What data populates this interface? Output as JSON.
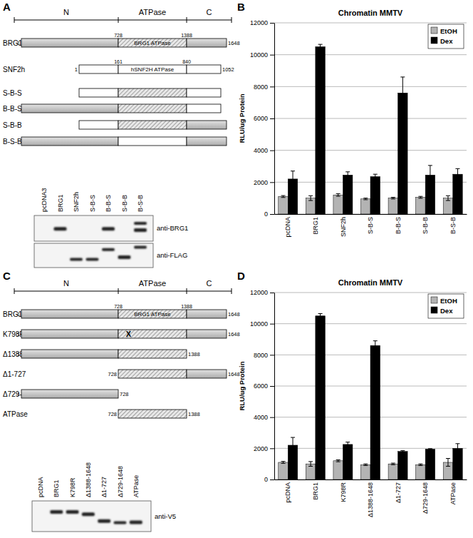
{
  "chart_data": [
    {
      "type": "bar",
      "title": "Chromatin MMTV",
      "y_label": "RLU/ug Protein",
      "categories": [
        "pcDNA",
        "BRG1",
        "SNF2h",
        "S-B-S",
        "B-B-S",
        "S-B-B",
        "B-S-B"
      ],
      "series": [
        {
          "name": "EtOH",
          "color": "#b3b3b3",
          "values": [
            1100,
            1000,
            1200,
            950,
            1000,
            1050,
            1000
          ],
          "errors": [
            60,
            150,
            80,
            50,
            50,
            60,
            150
          ]
        },
        {
          "name": "Dex",
          "color": "#000000",
          "values": [
            2200,
            10500,
            2450,
            2350,
            7600,
            2450,
            2500
          ],
          "errors": [
            500,
            150,
            200,
            150,
            1000,
            600,
            350
          ]
        }
      ],
      "ylim": [
        0,
        12000
      ],
      "yticks": [
        0,
        2000,
        4000,
        6000,
        8000,
        10000,
        12000
      ],
      "grid": true,
      "legend": "top-right"
    },
    {
      "type": "bar",
      "title": "Chromatin MMTV",
      "y_label": "RLU/ug Protein",
      "categories": [
        "pcDNA",
        "BRG1",
        "K798R",
        "Δ1388-1648",
        "Δ1-727",
        "Δ729-1648",
        "ATPase"
      ],
      "series": [
        {
          "name": "EtOH",
          "color": "#b3b3b3",
          "values": [
            1100,
            1000,
            1200,
            950,
            1000,
            950,
            1100
          ],
          "errors": [
            60,
            150,
            60,
            50,
            50,
            50,
            250
          ]
        },
        {
          "name": "Dex",
          "color": "#000000",
          "values": [
            2200,
            10500,
            2250,
            8600,
            1800,
            1950,
            2000
          ],
          "errors": [
            500,
            150,
            150,
            300,
            50,
            30,
            300
          ]
        }
      ],
      "ylim": [
        0,
        12000
      ],
      "yticks": [
        0,
        2000,
        4000,
        6000,
        8000,
        10000,
        12000
      ],
      "grid": true,
      "legend": "top-right"
    }
  ],
  "figure": {
    "panel_labels": [
      "A",
      "B",
      "C",
      "D"
    ],
    "diagrams": [
      {
        "header": [
          "N",
          "ATPase",
          "C"
        ],
        "rows": [
          {
            "name": "BRG1",
            "start": 1,
            "end": 1648,
            "ticks": [
              728,
              1388
            ],
            "domain": "BRG1 ATPase"
          },
          {
            "name": "SNF2h",
            "start": 1,
            "end": 1052,
            "ticks": [
              161,
              840
            ],
            "domain": "hSNF2H ATPase"
          },
          {
            "name": "S-B-S"
          },
          {
            "name": "B-B-S"
          },
          {
            "name": "S-B-B"
          },
          {
            "name": "B-S-B"
          }
        ]
      },
      {
        "header": [
          "N",
          "ATPase",
          "C"
        ],
        "rows": [
          {
            "name": "BRG1",
            "start": 1,
            "end": 1648,
            "ticks": [
              728,
              1388
            ],
            "domain": "BRG1 ATPase"
          },
          {
            "name": "K798R",
            "start": 1,
            "end": 1648,
            "mutation": "X"
          },
          {
            "name": "Δ1388-1648",
            "start": 1,
            "end": 1388
          },
          {
            "name": "Δ1-727",
            "start": 728,
            "end": 1648
          },
          {
            "name": "Δ729-1648",
            "start": 1,
            "end": 728
          },
          {
            "name": "ATPase",
            "start": 728,
            "end": 1388
          }
        ]
      }
    ],
    "blots": [
      {
        "lanes": [
          "pcDNA3",
          "BRG1",
          "SNF2h",
          "S-B-S",
          "B-B-S",
          "S-B-B",
          "B-S-B"
        ],
        "antibodies": [
          "anti-BRG1",
          "anti-FLAG"
        ]
      },
      {
        "lanes": [
          "pcDNA",
          "BRG1",
          "K798R",
          "Δ1388-1648",
          "Δ1-727",
          "Δ729-1648",
          "ATPase"
        ],
        "antibodies": [
          "anti-V5"
        ]
      }
    ]
  }
}
